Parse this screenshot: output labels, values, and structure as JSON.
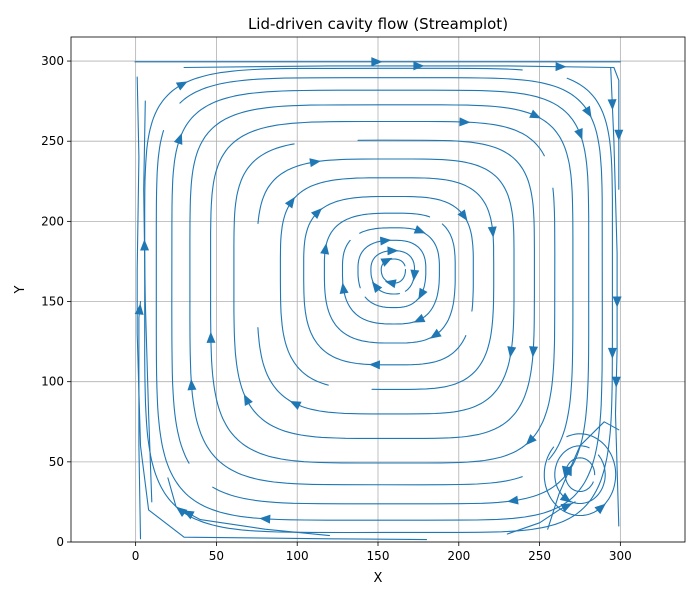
{
  "chart_data": {
    "type": "streamplot",
    "title": "Lid-driven cavity flow (Streamplot)",
    "xlabel": "X",
    "ylabel": "Y",
    "xlim": [
      -40,
      340
    ],
    "ylim": [
      0,
      315
    ],
    "xticks": [
      0,
      50,
      100,
      150,
      200,
      250,
      300
    ],
    "yticks": [
      0,
      50,
      100,
      150,
      200,
      250,
      300
    ],
    "grid": true,
    "line_color": "#1f77b4",
    "domain": {
      "x": [
        0,
        300
      ],
      "y": [
        0,
        300
      ]
    },
    "lid": {
      "y": 300,
      "velocity_direction": "+x"
    },
    "primary_vortex_center": [
      160,
      170
    ],
    "secondary_vortex_center": [
      275,
      42
    ],
    "rotation": "clockwise"
  }
}
